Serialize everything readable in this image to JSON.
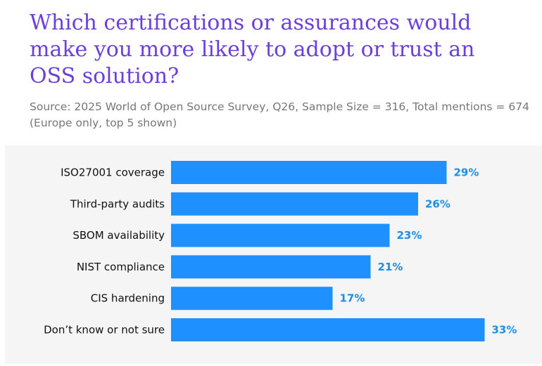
{
  "chart_data": {
    "type": "bar",
    "orientation": "horizontal",
    "title": "Which certifications or assurances would make you more likely to adopt or trust an OSS solution?",
    "subtitle": "Source: 2025 World of Open Source Survey, Q26, Sample Size = 316, Total mentions = 674 (Europe only, top 5 shown)",
    "categories": [
      "ISO27001 coverage",
      "Third-party audits",
      "SBOM availability",
      "NIST compliance",
      "CIS hardening",
      "Don’t know or not sure"
    ],
    "values": [
      29,
      26,
      23,
      21,
      17,
      33
    ],
    "value_labels": [
      "29%",
      "26%",
      "23%",
      "21%",
      "17%",
      "33%"
    ],
    "unit": "%",
    "xlim": [
      0,
      100
    ],
    "grid": false,
    "legend": "none",
    "bar_color": "#1e90ff",
    "label_color": "#1a8fe8",
    "title_color": "#6b3fd8"
  }
}
